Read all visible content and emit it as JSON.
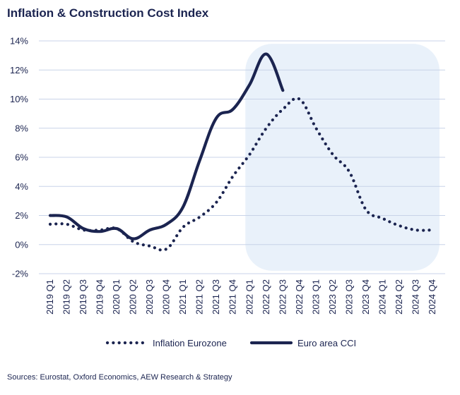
{
  "chart_data": {
    "type": "line",
    "title": "Inflation & Construction Cost Index",
    "xlabel": "",
    "ylabel": "",
    "categories": [
      "2019 Q1",
      "2019 Q2",
      "2019 Q3",
      "2019 Q4",
      "2020 Q1",
      "2020 Q2",
      "2020 Q3",
      "2020 Q4",
      "2021 Q1",
      "2021 Q2",
      "2021 Q3",
      "2021 Q4",
      "2022 Q1",
      "2022 Q2",
      "2022 Q3",
      "2022 Q4",
      "2023 Q1",
      "2023 Q2",
      "2023 Q3",
      "2023 Q4",
      "2024 Q1",
      "2024 Q2",
      "2024 Q3",
      "2024 Q4"
    ],
    "y_ticks": [
      "14%",
      "12%",
      "10%",
      "8%",
      "6%",
      "4%",
      "2%",
      "0%",
      "-2%"
    ],
    "ylim": [
      -2,
      14
    ],
    "grid": true,
    "legend_position": "bottom",
    "highlight": {
      "from": "2022 Q1",
      "to": "2024 Q4",
      "color": "#e9f1fa"
    },
    "series": [
      {
        "name": "Inflation Eurozone",
        "style": "dotted",
        "color": "#1b2450",
        "values": [
          1.4,
          1.4,
          1.0,
          1.0,
          1.1,
          0.2,
          -0.1,
          -0.3,
          1.2,
          1.9,
          2.9,
          4.7,
          6.2,
          8.0,
          9.3,
          10.0,
          8.0,
          6.2,
          5.0,
          2.4,
          1.8,
          1.3,
          1.0,
          1.0
        ]
      },
      {
        "name": "Euro area CCI",
        "style": "solid",
        "color": "#1b2450",
        "values": [
          2.0,
          1.9,
          1.1,
          0.9,
          1.1,
          0.4,
          1.0,
          1.4,
          2.6,
          5.8,
          8.7,
          9.3,
          11.0,
          13.1,
          10.6,
          null,
          null,
          null,
          null,
          null,
          null,
          null,
          null,
          null
        ]
      }
    ]
  },
  "source": "Sources: Eurostat, Oxford Economics, AEW Research & Strategy"
}
